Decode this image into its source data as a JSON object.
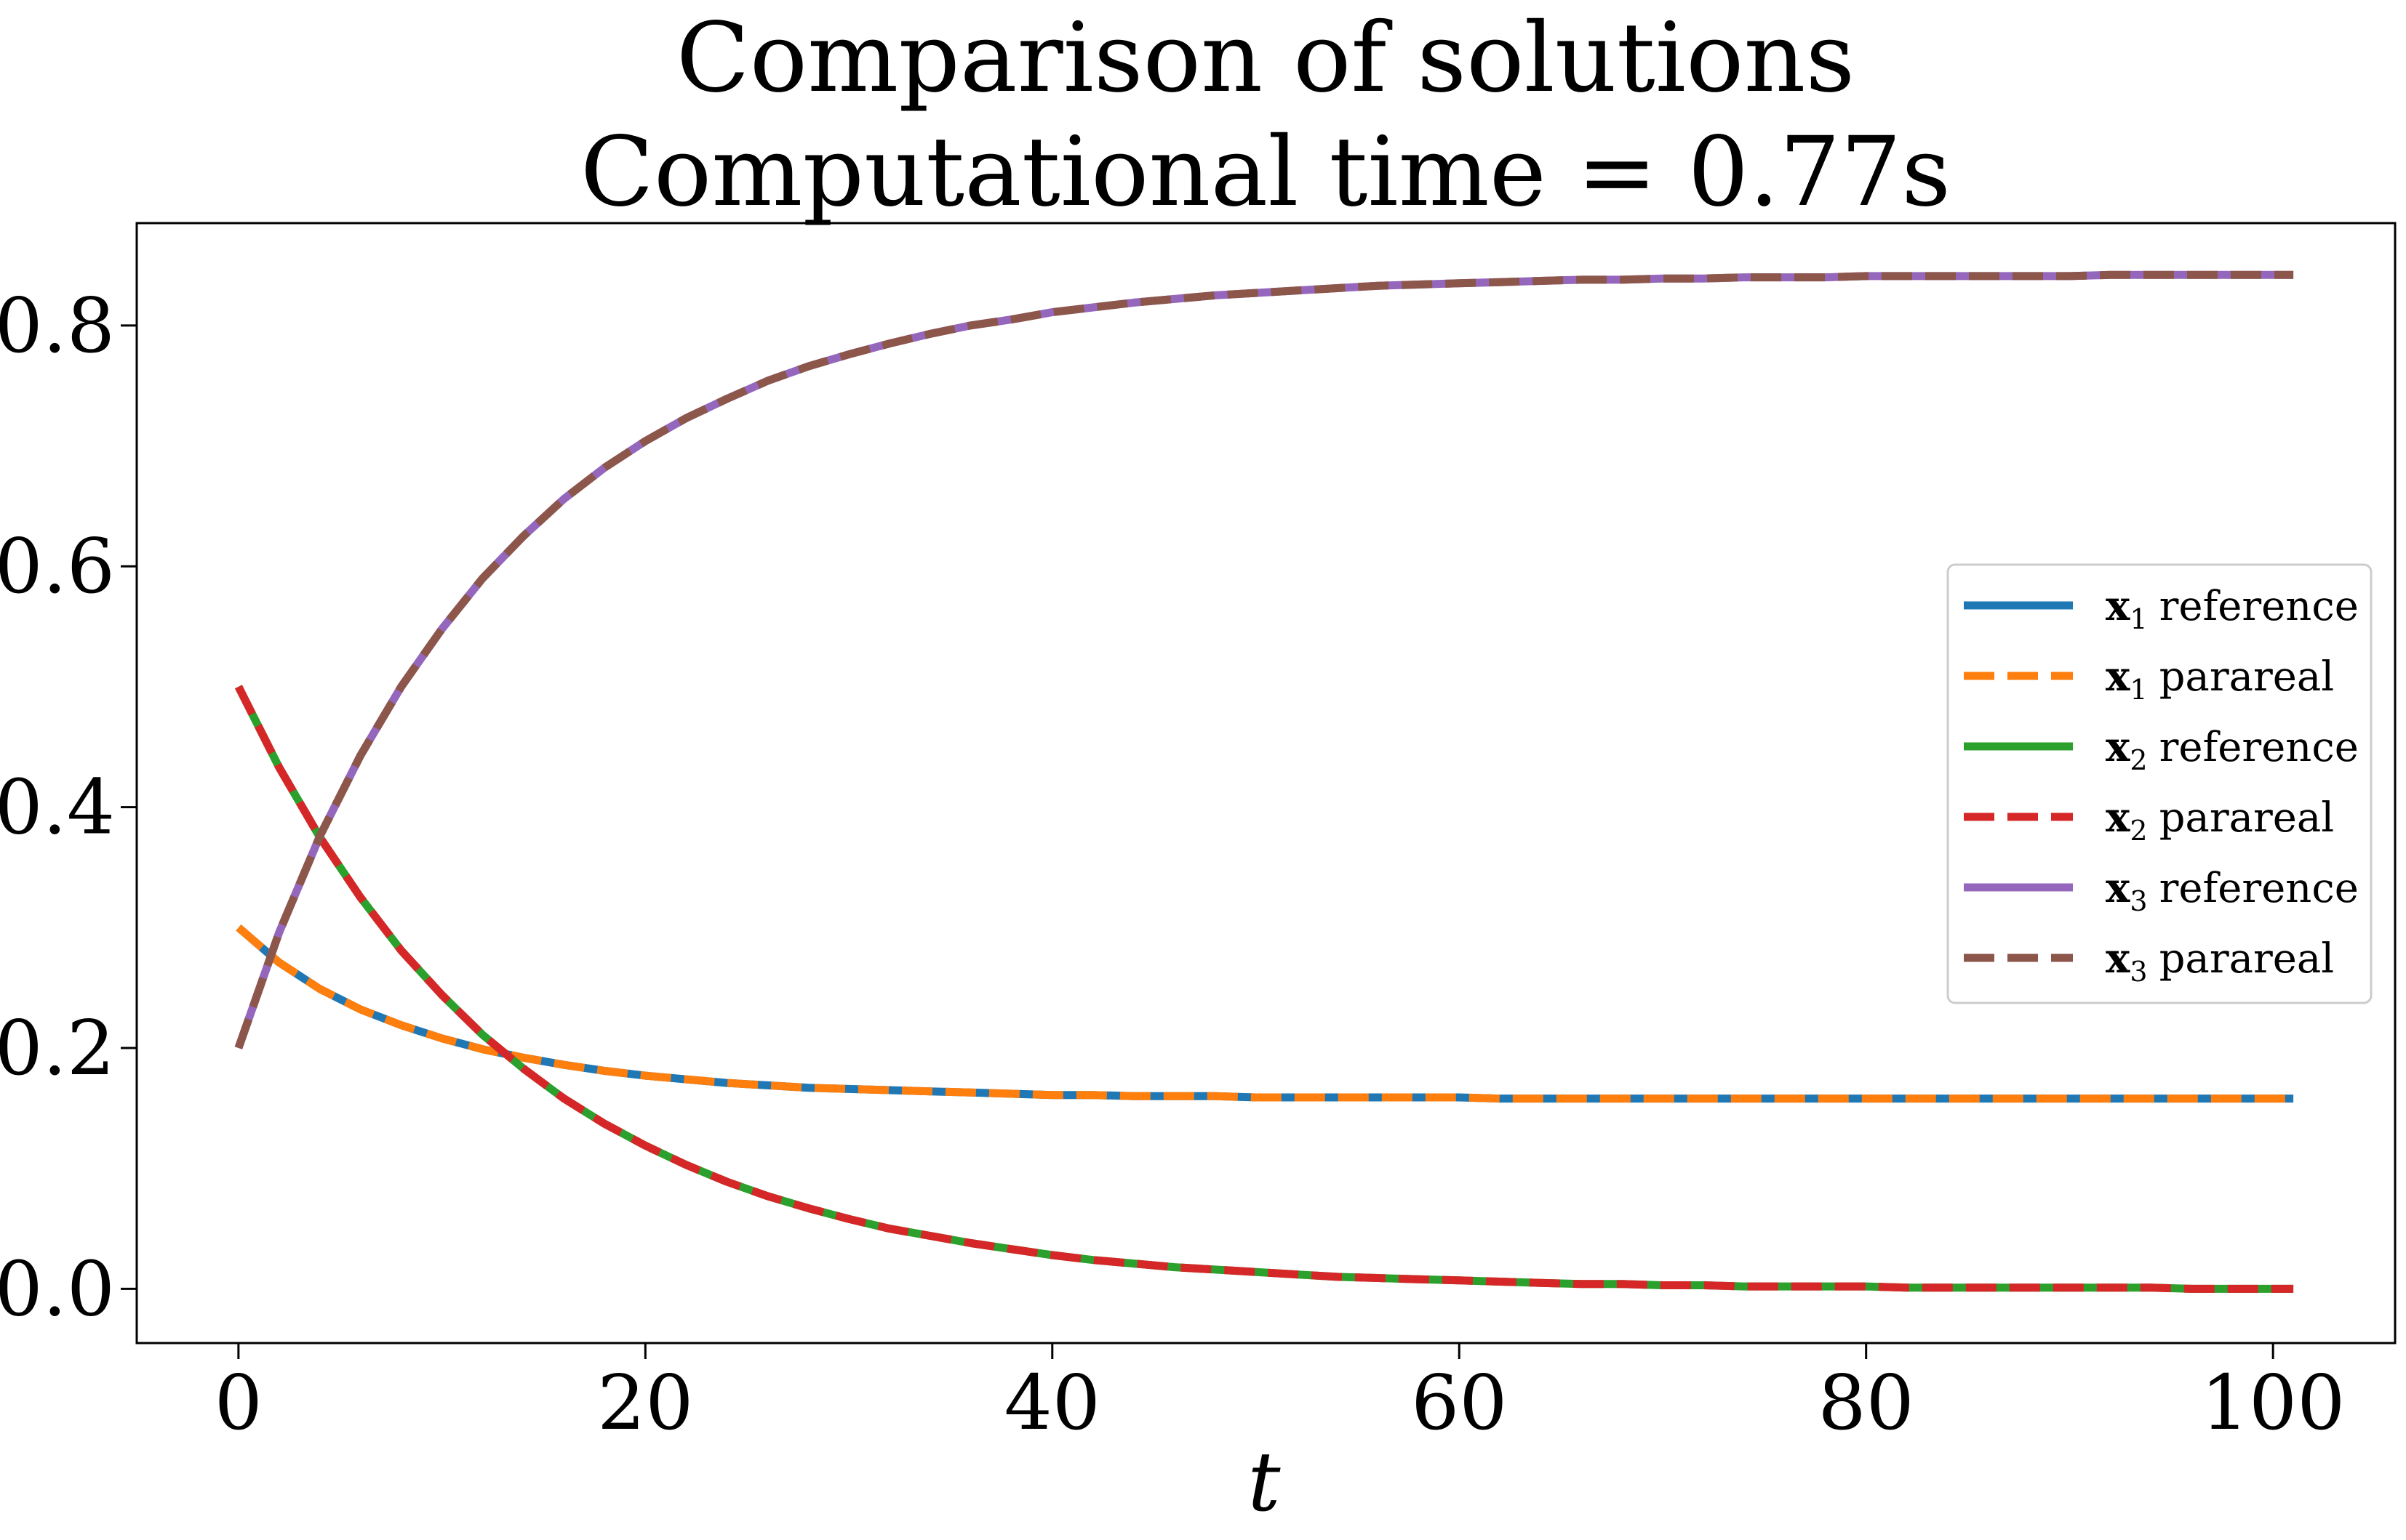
{
  "chart_data": {
    "type": "line",
    "title": "Comparison of solutions",
    "subtitle": "Computational time = 0.77s",
    "xlabel": "t",
    "ylabel": "",
    "xlim": [
      -5,
      106
    ],
    "ylim": [
      -0.045,
      0.885
    ],
    "xticks": [
      0,
      20,
      40,
      60,
      80,
      100
    ],
    "xtick_labels": [
      "0",
      "20",
      "40",
      "60",
      "80",
      "100"
    ],
    "yticks": [
      0.0,
      0.2,
      0.4,
      0.6,
      0.8
    ],
    "ytick_labels": [
      "0.0",
      "0.2",
      "0.4",
      "0.6",
      "0.8"
    ],
    "grid": false,
    "legend_position": "center-right",
    "x": [
      0,
      2,
      4,
      6,
      8,
      10,
      12,
      14,
      16,
      18,
      20,
      22,
      24,
      26,
      28,
      30,
      32,
      34,
      36,
      38,
      40,
      42,
      44,
      46,
      48,
      50,
      52,
      54,
      56,
      58,
      60,
      62,
      64,
      66,
      68,
      70,
      72,
      74,
      76,
      78,
      80,
      82,
      84,
      86,
      88,
      90,
      92,
      94,
      96,
      98,
      100,
      101
    ],
    "series": [
      {
        "name": "x1 reference",
        "legend_main": "x",
        "legend_sub": "1",
        "legend_text": "reference",
        "color": "#1f77b4",
        "dash": "solid",
        "values": [
          0.3,
          0.271,
          0.249,
          0.232,
          0.219,
          0.208,
          0.199,
          0.192,
          0.186,
          0.181,
          0.177,
          0.174,
          0.171,
          0.169,
          0.167,
          0.166,
          0.165,
          0.164,
          0.163,
          0.162,
          0.161,
          0.161,
          0.16,
          0.16,
          0.16,
          0.159,
          0.159,
          0.159,
          0.159,
          0.159,
          0.159,
          0.158,
          0.158,
          0.158,
          0.158,
          0.158,
          0.158,
          0.158,
          0.158,
          0.158,
          0.158,
          0.158,
          0.158,
          0.158,
          0.158,
          0.158,
          0.158,
          0.158,
          0.158,
          0.158,
          0.158,
          0.158
        ]
      },
      {
        "name": "x1 parareal",
        "legend_main": "x",
        "legend_sub": "1",
        "legend_text": "parareal",
        "color": "#ff7f0e",
        "dash": "dashed",
        "values": [
          0.3,
          0.271,
          0.249,
          0.232,
          0.219,
          0.208,
          0.199,
          0.192,
          0.186,
          0.181,
          0.177,
          0.174,
          0.171,
          0.169,
          0.167,
          0.166,
          0.165,
          0.164,
          0.163,
          0.162,
          0.161,
          0.161,
          0.16,
          0.16,
          0.16,
          0.159,
          0.159,
          0.159,
          0.159,
          0.159,
          0.159,
          0.158,
          0.158,
          0.158,
          0.158,
          0.158,
          0.158,
          0.158,
          0.158,
          0.158,
          0.158,
          0.158,
          0.158,
          0.158,
          0.158,
          0.158,
          0.158,
          0.158,
          0.158,
          0.158,
          0.158,
          0.158
        ]
      },
      {
        "name": "x2 reference",
        "legend_main": "x",
        "legend_sub": "2",
        "legend_text": "reference",
        "color": "#2ca02c",
        "dash": "solid",
        "values": [
          0.5,
          0.433,
          0.375,
          0.325,
          0.281,
          0.244,
          0.211,
          0.183,
          0.158,
          0.137,
          0.119,
          0.103,
          0.089,
          0.077,
          0.067,
          0.058,
          0.05,
          0.044,
          0.038,
          0.033,
          0.028,
          0.024,
          0.021,
          0.018,
          0.016,
          0.014,
          0.012,
          0.01,
          0.009,
          0.008,
          0.007,
          0.006,
          0.005,
          0.004,
          0.004,
          0.003,
          0.003,
          0.002,
          0.002,
          0.002,
          0.002,
          0.001,
          0.001,
          0.001,
          0.001,
          0.001,
          0.001,
          0.001,
          0.0,
          0.0,
          0.0,
          0.0
        ]
      },
      {
        "name": "x2 parareal",
        "legend_main": "x",
        "legend_sub": "2",
        "legend_text": "parareal",
        "color": "#d62728",
        "dash": "dashed",
        "values": [
          0.5,
          0.433,
          0.375,
          0.325,
          0.281,
          0.244,
          0.211,
          0.183,
          0.158,
          0.137,
          0.119,
          0.103,
          0.089,
          0.077,
          0.067,
          0.058,
          0.05,
          0.044,
          0.038,
          0.033,
          0.028,
          0.024,
          0.021,
          0.018,
          0.016,
          0.014,
          0.012,
          0.01,
          0.009,
          0.008,
          0.007,
          0.006,
          0.005,
          0.004,
          0.004,
          0.003,
          0.003,
          0.002,
          0.002,
          0.002,
          0.002,
          0.001,
          0.001,
          0.001,
          0.001,
          0.001,
          0.001,
          0.001,
          0.0,
          0.0,
          0.0,
          0.0
        ]
      },
      {
        "name": "x3 reference",
        "legend_main": "x",
        "legend_sub": "3",
        "legend_text": "reference",
        "color": "#9467bd",
        "dash": "solid",
        "values": [
          0.2,
          0.296,
          0.376,
          0.443,
          0.5,
          0.548,
          0.59,
          0.625,
          0.656,
          0.682,
          0.704,
          0.723,
          0.739,
          0.754,
          0.766,
          0.776,
          0.785,
          0.793,
          0.8,
          0.805,
          0.811,
          0.815,
          0.819,
          0.822,
          0.825,
          0.827,
          0.829,
          0.831,
          0.833,
          0.834,
          0.835,
          0.836,
          0.837,
          0.838,
          0.838,
          0.839,
          0.839,
          0.84,
          0.84,
          0.84,
          0.841,
          0.841,
          0.841,
          0.841,
          0.841,
          0.841,
          0.842,
          0.842,
          0.842,
          0.842,
          0.842,
          0.842
        ]
      },
      {
        "name": "x3 parareal",
        "legend_main": "x",
        "legend_sub": "3",
        "legend_text": "parareal",
        "color": "#8c564b",
        "dash": "dashed",
        "values": [
          0.2,
          0.296,
          0.376,
          0.443,
          0.5,
          0.548,
          0.59,
          0.625,
          0.656,
          0.682,
          0.704,
          0.723,
          0.739,
          0.754,
          0.766,
          0.776,
          0.785,
          0.793,
          0.8,
          0.805,
          0.811,
          0.815,
          0.819,
          0.822,
          0.825,
          0.827,
          0.829,
          0.831,
          0.833,
          0.834,
          0.835,
          0.836,
          0.837,
          0.838,
          0.838,
          0.839,
          0.839,
          0.84,
          0.84,
          0.84,
          0.841,
          0.841,
          0.841,
          0.841,
          0.841,
          0.841,
          0.842,
          0.842,
          0.842,
          0.842,
          0.842,
          0.842
        ]
      }
    ]
  }
}
